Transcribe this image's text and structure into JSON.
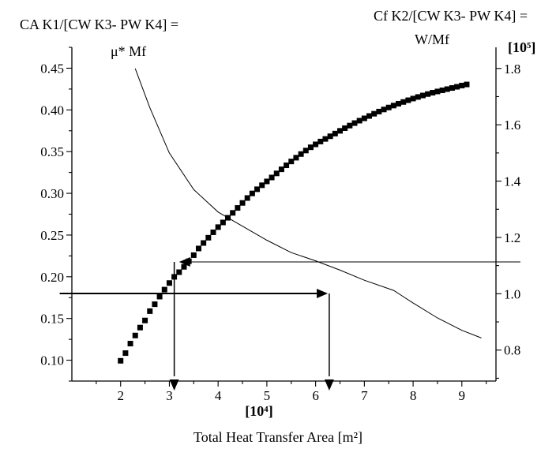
{
  "chart_data": {
    "type": "line",
    "title": "",
    "xlabel": "Total Heat Transfer Area [m²]",
    "x_scale_label": "[10⁴]",
    "left_axis_title": {
      "line1": "CA K1/[CW K3- PW K4] =",
      "line2": "μ* Mf"
    },
    "right_axis_title": {
      "line1": "Cf K2/[CW K3- PW K4] =",
      "line2": "W/Mf"
    },
    "right_scale_label": "[10⁵]",
    "xlim": [
      1.0,
      9.7
    ],
    "ylim_left": [
      0.075,
      0.475
    ],
    "ylim_right": [
      0.69,
      1.875
    ],
    "x_ticks": [
      "2",
      "3",
      "4",
      "5",
      "6",
      "7",
      "8",
      "9"
    ],
    "y_left_ticks": [
      "0.10",
      "0.15",
      "0.20",
      "0.25",
      "0.30",
      "0.35",
      "0.40",
      "0.45"
    ],
    "y_right_ticks": [
      "0.8",
      "1.0",
      "1.2",
      "1.4",
      "1.6",
      "1.8"
    ],
    "grid": false,
    "series": [
      {
        "axis": "left",
        "style": "square-markers",
        "x": [
          2.0,
          2.1,
          2.2,
          2.3,
          2.4,
          2.5,
          2.6,
          2.7,
          2.8,
          2.9,
          3.0,
          3.1,
          3.2,
          3.3,
          3.4,
          3.5,
          3.6,
          3.7,
          3.8,
          3.9,
          4.0,
          4.1,
          4.2,
          4.3,
          4.4,
          4.5,
          4.6,
          4.7,
          4.8,
          4.9,
          5.0,
          5.1,
          5.2,
          5.3,
          5.4,
          5.5,
          5.6,
          5.7,
          5.8,
          5.9,
          6.0,
          6.1,
          6.2,
          6.3,
          6.4,
          6.5,
          6.6,
          6.7,
          6.8,
          6.9,
          7.0,
          7.1,
          7.2,
          7.3,
          7.4,
          7.5,
          7.6,
          7.7,
          7.8,
          7.9,
          8.0,
          8.1,
          8.2,
          8.3,
          8.4,
          8.5,
          8.6,
          8.7,
          8.8,
          8.9,
          9.0,
          9.1
        ],
        "y": [
          0.0993,
          0.1085,
          0.1199,
          0.1296,
          0.1391,
          0.1476,
          0.1588,
          0.1671,
          0.1762,
          0.1846,
          0.1925,
          0.1999,
          0.2055,
          0.2119,
          0.2186,
          0.2259,
          0.2339,
          0.2405,
          0.2468,
          0.2533,
          0.2595,
          0.2651,
          0.2707,
          0.2766,
          0.2825,
          0.2885,
          0.2944,
          0.2999,
          0.3049,
          0.3097,
          0.3143,
          0.319,
          0.3239,
          0.3288,
          0.3336,
          0.3382,
          0.3427,
          0.3471,
          0.3513,
          0.3552,
          0.3587,
          0.3621,
          0.3652,
          0.3684,
          0.3716,
          0.3749,
          0.3781,
          0.3812,
          0.3842,
          0.3871,
          0.3899,
          0.3927,
          0.3954,
          0.398,
          0.4005,
          0.4029,
          0.4052,
          0.4074,
          0.4095,
          0.4116,
          0.4136,
          0.4155,
          0.4173,
          0.419,
          0.4206,
          0.4221,
          0.4235,
          0.4249,
          0.4263,
          0.4277,
          0.4292,
          0.4305
        ]
      },
      {
        "axis": "right",
        "style": "line",
        "x": [
          2.3,
          2.6,
          3.0,
          3.5,
          4.0,
          4.5,
          5.0,
          5.5,
          6.0,
          6.5,
          7.0,
          7.6,
          8.0,
          8.5,
          9.0,
          9.4
        ],
        "y": [
          1.8,
          1.66,
          1.5,
          1.37,
          1.29,
          1.24,
          1.19,
          1.146,
          1.117,
          1.084,
          1.048,
          1.012,
          0.967,
          0.914,
          0.87,
          0.843
        ]
      }
    ],
    "annotations": {
      "horizontal_arrows": [
        {
          "axis": "left",
          "y": 0.18,
          "from_x": 0.75,
          "to_x": 6.25
        },
        {
          "axis": "right",
          "y": 1.113,
          "from_x": 10.2,
          "to_x": 3.2
        }
      ],
      "vertical_arrows": [
        {
          "x": 3.1,
          "from_y_right": 1.113,
          "to_y": "x-axis"
        },
        {
          "x": 6.28,
          "from_y_left": 0.18,
          "to_y": "x-axis"
        }
      ]
    }
  }
}
